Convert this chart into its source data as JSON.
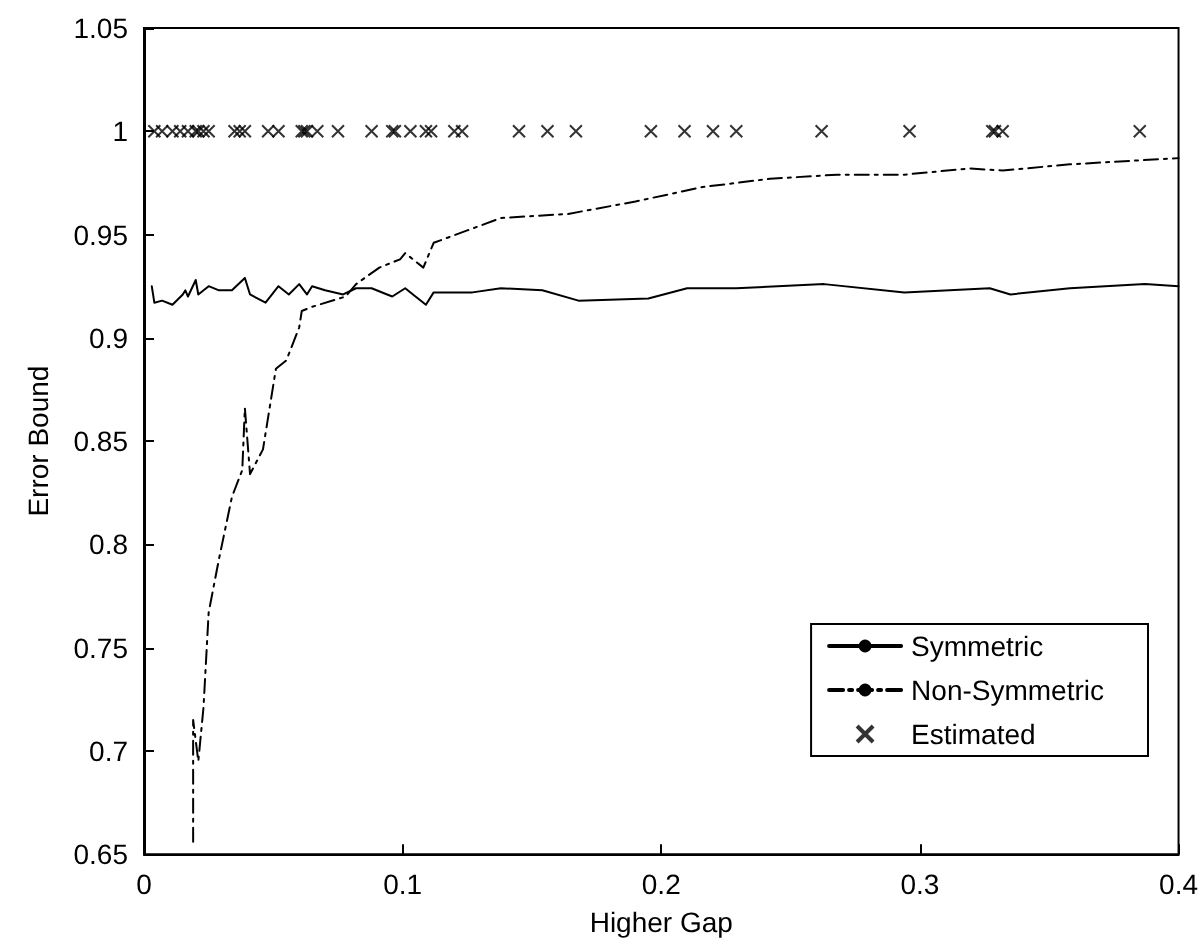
{
  "chart_data": {
    "type": "line",
    "xlabel": "Higher Gap",
    "ylabel": "Error Bound",
    "xlim": [
      0,
      0.4
    ],
    "xticks": [
      0,
      0.1,
      0.2,
      0.3,
      0.4
    ],
    "ylim": [
      0.65,
      1.05
    ],
    "yticks": [
      0.65,
      0.7,
      0.75,
      0.8,
      0.85,
      0.9,
      0.95,
      1,
      1.05
    ],
    "grid": false,
    "legend": "right",
    "series": [
      {
        "name": "Symmetric",
        "color": "#000000",
        "line_style": "solid",
        "marker": "none",
        "x": [
          0.003,
          0.004,
          0.007,
          0.011,
          0.015,
          0.016,
          0.017,
          0.02,
          0.021,
          0.025,
          0.029,
          0.034,
          0.039,
          0.041,
          0.047,
          0.052,
          0.056,
          0.06,
          0.063,
          0.065,
          0.07,
          0.077,
          0.082,
          0.088,
          0.094,
          0.096,
          0.101,
          0.104,
          0.109,
          0.112,
          0.127,
          0.138,
          0.154,
          0.168,
          0.195,
          0.21,
          0.229,
          0.263,
          0.294,
          0.327,
          0.335,
          0.358,
          0.387,
          0.4
        ],
        "values": [
          0.925,
          0.917,
          0.918,
          0.916,
          0.921,
          0.923,
          0.92,
          0.928,
          0.921,
          0.925,
          0.923,
          0.923,
          0.929,
          0.921,
          0.917,
          0.925,
          0.921,
          0.926,
          0.921,
          0.925,
          0.923,
          0.921,
          0.924,
          0.924,
          0.921,
          0.92,
          0.924,
          0.921,
          0.916,
          0.922,
          0.922,
          0.924,
          0.923,
          0.918,
          0.919,
          0.924,
          0.924,
          0.926,
          0.922,
          0.924,
          0.921,
          0.924,
          0.926,
          0.925
        ]
      },
      {
        "name": "Non-Symmetric",
        "color": "#000000",
        "line_style": "dashed",
        "marker": "none",
        "x": [
          0.019,
          0.019,
          0.021,
          0.023,
          0.025,
          0.029,
          0.034,
          0.038,
          0.039,
          0.041,
          0.046,
          0.051,
          0.055,
          0.06,
          0.061,
          0.065,
          0.078,
          0.082,
          0.091,
          0.099,
          0.101,
          0.108,
          0.112,
          0.125,
          0.138,
          0.164,
          0.19,
          0.216,
          0.242,
          0.268,
          0.294,
          0.319,
          0.332,
          0.358,
          0.4
        ],
        "values": [
          0.656,
          0.715,
          0.695,
          0.721,
          0.767,
          0.793,
          0.823,
          0.836,
          0.866,
          0.834,
          0.846,
          0.885,
          0.889,
          0.905,
          0.913,
          0.915,
          0.92,
          0.926,
          0.934,
          0.938,
          0.941,
          0.934,
          0.946,
          0.952,
          0.958,
          0.96,
          0.966,
          0.973,
          0.977,
          0.979,
          0.979,
          0.982,
          0.981,
          0.984,
          0.987
        ]
      },
      {
        "name": "Estimated",
        "type": "scatter",
        "color": "#000000",
        "marker": "cross",
        "x": [
          0.004,
          0.007,
          0.011,
          0.014,
          0.017,
          0.02,
          0.021,
          0.023,
          0.025,
          0.035,
          0.037,
          0.039,
          0.048,
          0.052,
          0.061,
          0.062,
          0.063,
          0.067,
          0.075,
          0.088,
          0.096,
          0.097,
          0.103,
          0.109,
          0.111,
          0.12,
          0.123,
          0.145,
          0.156,
          0.167,
          0.196,
          0.209,
          0.22,
          0.229,
          0.262,
          0.296,
          0.328,
          0.329,
          0.332,
          0.385
        ],
        "values": [
          1,
          1,
          1,
          1,
          1,
          1,
          1,
          1,
          1,
          1,
          1,
          1,
          1,
          1,
          1,
          1,
          1,
          1,
          1,
          1,
          1,
          1,
          1,
          1,
          1,
          1,
          1,
          1,
          1,
          1,
          1,
          1,
          1,
          1,
          1,
          1,
          1,
          1,
          1,
          1
        ]
      }
    ]
  }
}
